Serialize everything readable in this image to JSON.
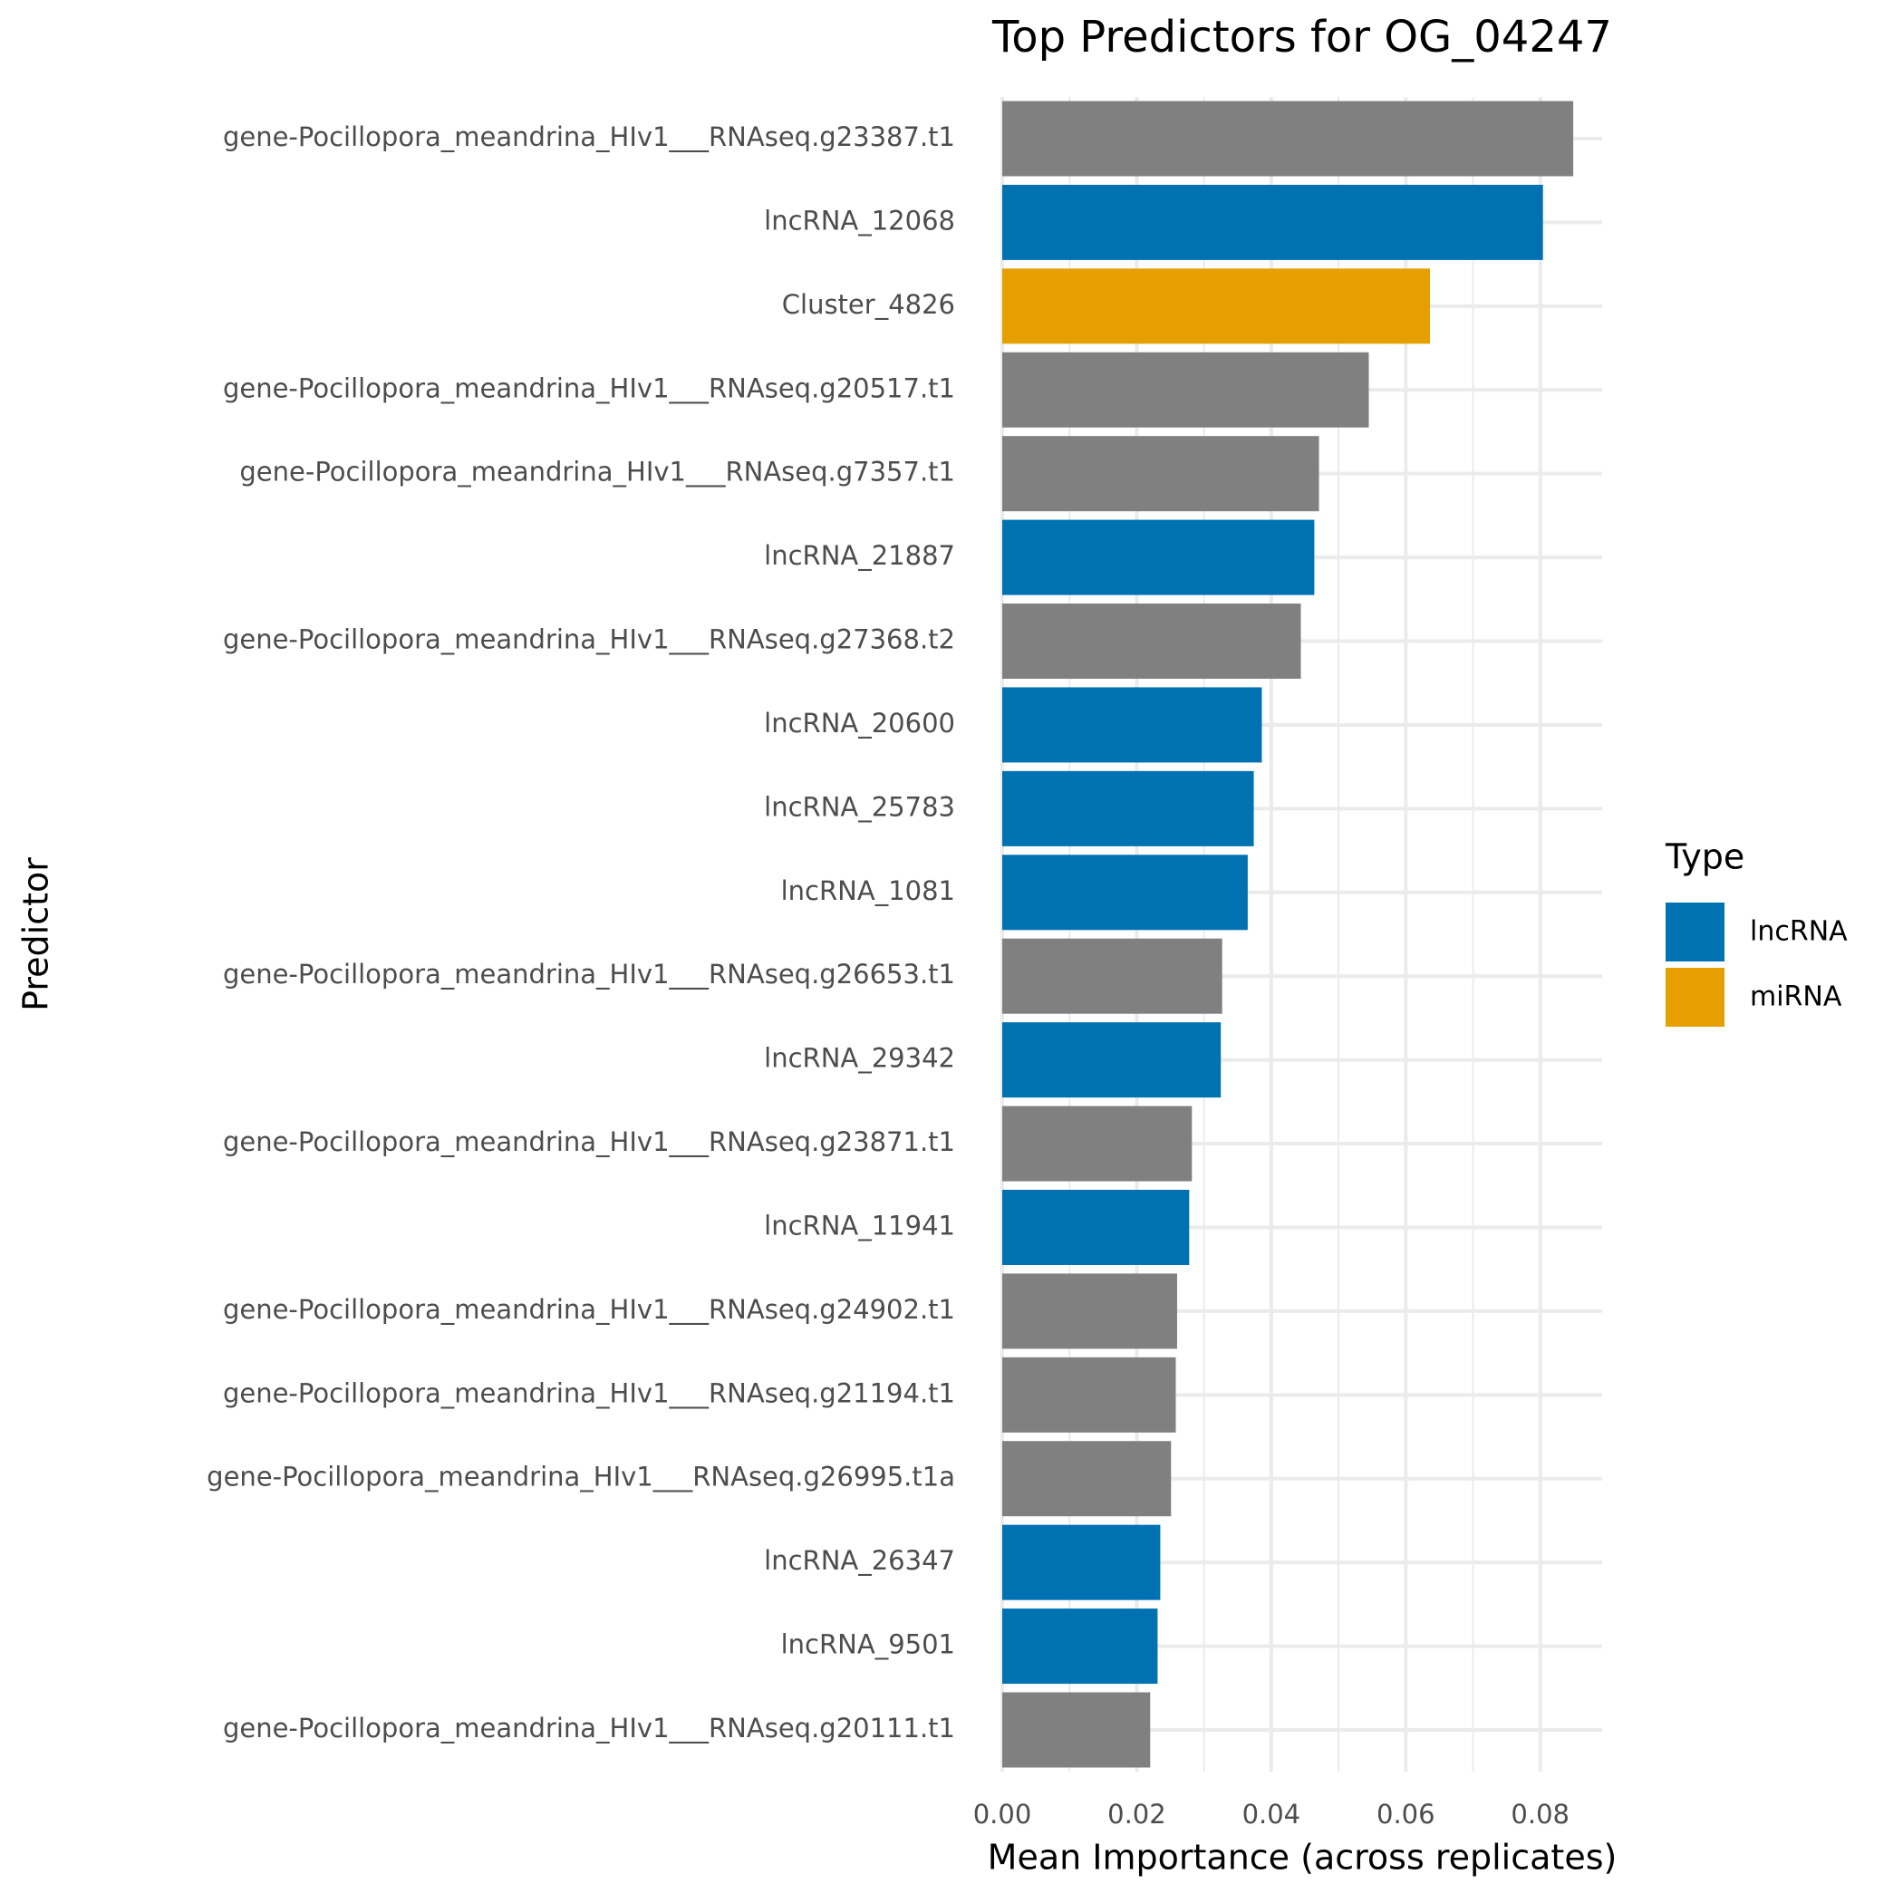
{
  "chart_data": {
    "type": "bar",
    "orientation": "horizontal",
    "title": "Top Predictors for OG_04247",
    "x_label": "Mean Importance (across replicates)",
    "y_label": "Predictor",
    "categories": [
      "gene-Pocillopora_meandrina_HIv1___RNAseq.g23387.t1",
      "lncRNA_12068",
      "Cluster_4826",
      "gene-Pocillopora_meandrina_HIv1___RNAseq.g20517.t1",
      "gene-Pocillopora_meandrina_HIv1___RNAseq.g7357.t1",
      "lncRNA_21887",
      "gene-Pocillopora_meandrina_HIv1___RNAseq.g27368.t2",
      "lncRNA_20600",
      "lncRNA_25783",
      "lncRNA_1081",
      "gene-Pocillopora_meandrina_HIv1___RNAseq.g26653.t1",
      "lncRNA_29342",
      "gene-Pocillopora_meandrina_HIv1___RNAseq.g23871.t1",
      "lncRNA_11941",
      "gene-Pocillopora_meandrina_HIv1___RNAseq.g24902.t1",
      "gene-Pocillopora_meandrina_HIv1___RNAseq.g21194.t1",
      "gene-Pocillopora_meandrina_HIv1___RNAseq.g26995.t1a",
      "lncRNA_26347",
      "lncRNA_9501",
      "gene-Pocillopora_meandrina_HIv1___RNAseq.g20111.t1"
    ],
    "values": [
      0.0849,
      0.0804,
      0.0636,
      0.0545,
      0.0471,
      0.0464,
      0.0444,
      0.0386,
      0.0374,
      0.0365,
      0.0327,
      0.0325,
      0.0282,
      0.0278,
      0.026,
      0.0258,
      0.0251,
      0.0235,
      0.0231,
      0.022
    ],
    "colors": [
      "#808080",
      "#0072b2",
      "#e69f00",
      "#808080",
      "#808080",
      "#0072b2",
      "#808080",
      "#0072b2",
      "#0072b2",
      "#0072b2",
      "#808080",
      "#0072b2",
      "#808080",
      "#0072b2",
      "#808080",
      "#808080",
      "#808080",
      "#0072b2",
      "#0072b2",
      "#808080"
    ],
    "legend_title": "Type",
    "legend": [
      {
        "name": "lncRNA",
        "color": "#0072b2"
      },
      {
        "name": "miRNA",
        "color": "#e69f00"
      }
    ],
    "xlim": [
      0,
      0.0892
    ],
    "xticks": [
      {
        "value": 0,
        "label": "0.00"
      },
      {
        "value": 0.02,
        "label": "0.02"
      },
      {
        "value": 0.04,
        "label": "0.04"
      },
      {
        "value": 0.06,
        "label": "0.06"
      },
      {
        "value": 0.08,
        "label": "0.08"
      }
    ],
    "xminorticks": [
      0.01,
      0.03,
      0.05,
      0.07
    ],
    "grid": true
  }
}
